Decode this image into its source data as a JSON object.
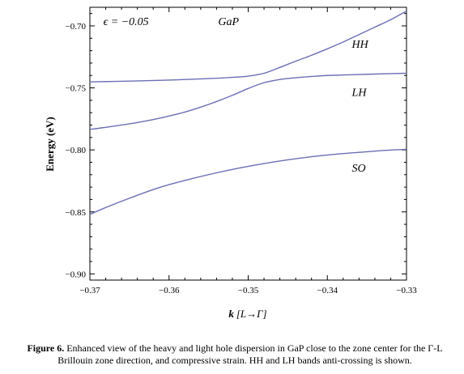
{
  "chart_data": {
    "type": "line",
    "title": "",
    "xlabel_var": "k",
    "xlabel_bracket": "[L→Γ]",
    "ylabel": "Energy (eV)",
    "xlim": [
      -0.37,
      -0.33
    ],
    "ylim": [
      -0.905,
      -0.685
    ],
    "xticks": [
      -0.37,
      -0.36,
      -0.35,
      -0.34,
      -0.33
    ],
    "xtick_labels": [
      "−0.37",
      "−0.36",
      "−0.35",
      "−0.34",
      "−0.33"
    ],
    "yticks": [
      -0.9,
      -0.85,
      -0.8,
      -0.75,
      -0.7
    ],
    "ytick_labels": [
      "−0.90",
      "−0.85",
      "−0.80",
      "−0.75",
      "−0.70"
    ],
    "grid": false,
    "line_color": "#6b6fb5",
    "annotations": [
      {
        "text": "ϵ = −0.05",
        "x": -0.3683,
        "y": -0.6995
      },
      {
        "text": "GaP",
        "x": -0.3538,
        "y": -0.6995
      },
      {
        "text": "HH",
        "x": -0.3369,
        "y": -0.7175
      },
      {
        "text": "LH",
        "x": -0.3369,
        "y": -0.7565
      },
      {
        "text": "SO",
        "x": -0.3369,
        "y": -0.8175
      }
    ],
    "series": [
      {
        "name": "HH",
        "x": [
          -0.37,
          -0.365,
          -0.36,
          -0.355,
          -0.352,
          -0.35,
          -0.348,
          -0.346,
          -0.344,
          -0.342,
          -0.34,
          -0.338,
          -0.336,
          -0.334,
          -0.332,
          -0.33
        ],
        "y": [
          -0.7452,
          -0.7445,
          -0.7437,
          -0.7425,
          -0.7415,
          -0.7405,
          -0.7382,
          -0.7335,
          -0.7285,
          -0.7237,
          -0.7185,
          -0.713,
          -0.707,
          -0.701,
          -0.695,
          -0.688
        ]
      },
      {
        "name": "LH",
        "x": [
          -0.37,
          -0.368,
          -0.365,
          -0.362,
          -0.36,
          -0.358,
          -0.356,
          -0.354,
          -0.352,
          -0.35,
          -0.348,
          -0.346,
          -0.344,
          -0.342,
          -0.34,
          -0.336,
          -0.332,
          -0.33
        ],
        "y": [
          -0.7835,
          -0.7818,
          -0.779,
          -0.7755,
          -0.7727,
          -0.7695,
          -0.7655,
          -0.761,
          -0.756,
          -0.7505,
          -0.7458,
          -0.7432,
          -0.7418,
          -0.7408,
          -0.74,
          -0.7392,
          -0.7385,
          -0.7382
        ]
      },
      {
        "name": "SO",
        "x": [
          -0.37,
          -0.368,
          -0.365,
          -0.362,
          -0.36,
          -0.357,
          -0.354,
          -0.351,
          -0.348,
          -0.345,
          -0.342,
          -0.339,
          -0.336,
          -0.333,
          -0.33
        ],
        "y": [
          -0.852,
          -0.8465,
          -0.839,
          -0.832,
          -0.828,
          -0.823,
          -0.8185,
          -0.8145,
          -0.811,
          -0.808,
          -0.8055,
          -0.8035,
          -0.802,
          -0.8005,
          -0.7995
        ]
      }
    ]
  },
  "caption": {
    "label": "Figure 6.",
    "text": " Enhanced view of the heavy and light hole dispersion in GaP close  to the zone center for the Γ-L Brillouin zone direction, and compressive strain. HH and LH bands anti-crossing is shown."
  }
}
